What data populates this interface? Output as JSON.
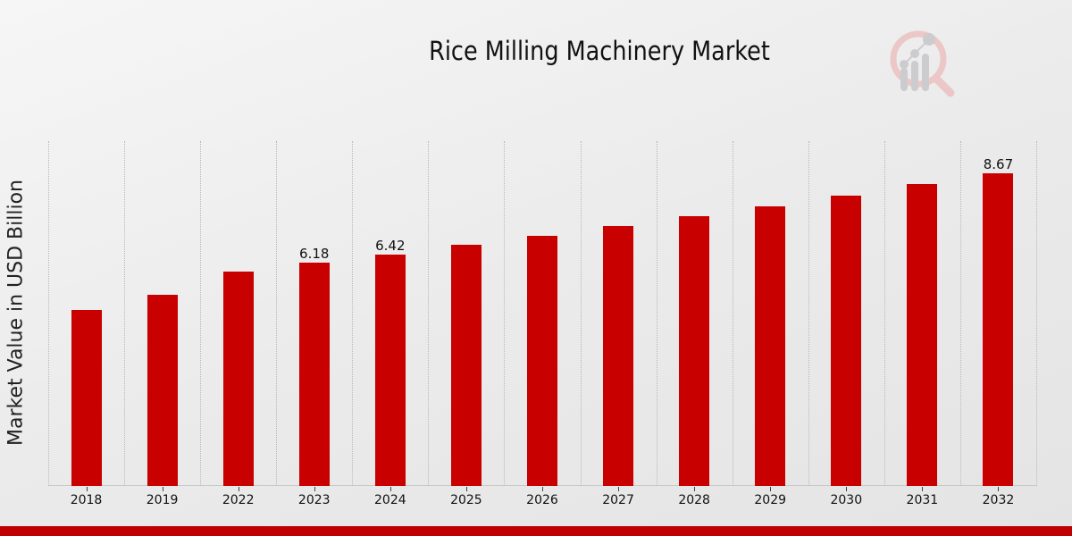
{
  "header": {
    "title": "Rice Milling Machinery Market"
  },
  "logo": {
    "icon": "magnifier-bar-chart-logo-icon",
    "accent": "#e8b4b4",
    "bars": "#c8c8cc"
  },
  "colors": {
    "bar": "#c80000",
    "footer": "#c00000"
  },
  "chart_data": {
    "type": "bar",
    "title": "Rice Milling Machinery Market",
    "xlabel": "",
    "ylabel": "Market Value in USD Billion",
    "categories": [
      "2018",
      "2019",
      "2022",
      "2023",
      "2024",
      "2025",
      "2026",
      "2027",
      "2028",
      "2029",
      "2030",
      "2031",
      "2032"
    ],
    "values": [
      4.88,
      5.3,
      5.95,
      6.18,
      6.42,
      6.69,
      6.94,
      7.21,
      7.48,
      7.75,
      8.05,
      8.37,
      8.67
    ],
    "data_labels": {
      "2023": "6.18",
      "2024": "6.42",
      "2032": "8.67"
    },
    "ylim": [
      0,
      9.56
    ],
    "grid": "vertical dotted lines between categories",
    "legend": "none"
  }
}
